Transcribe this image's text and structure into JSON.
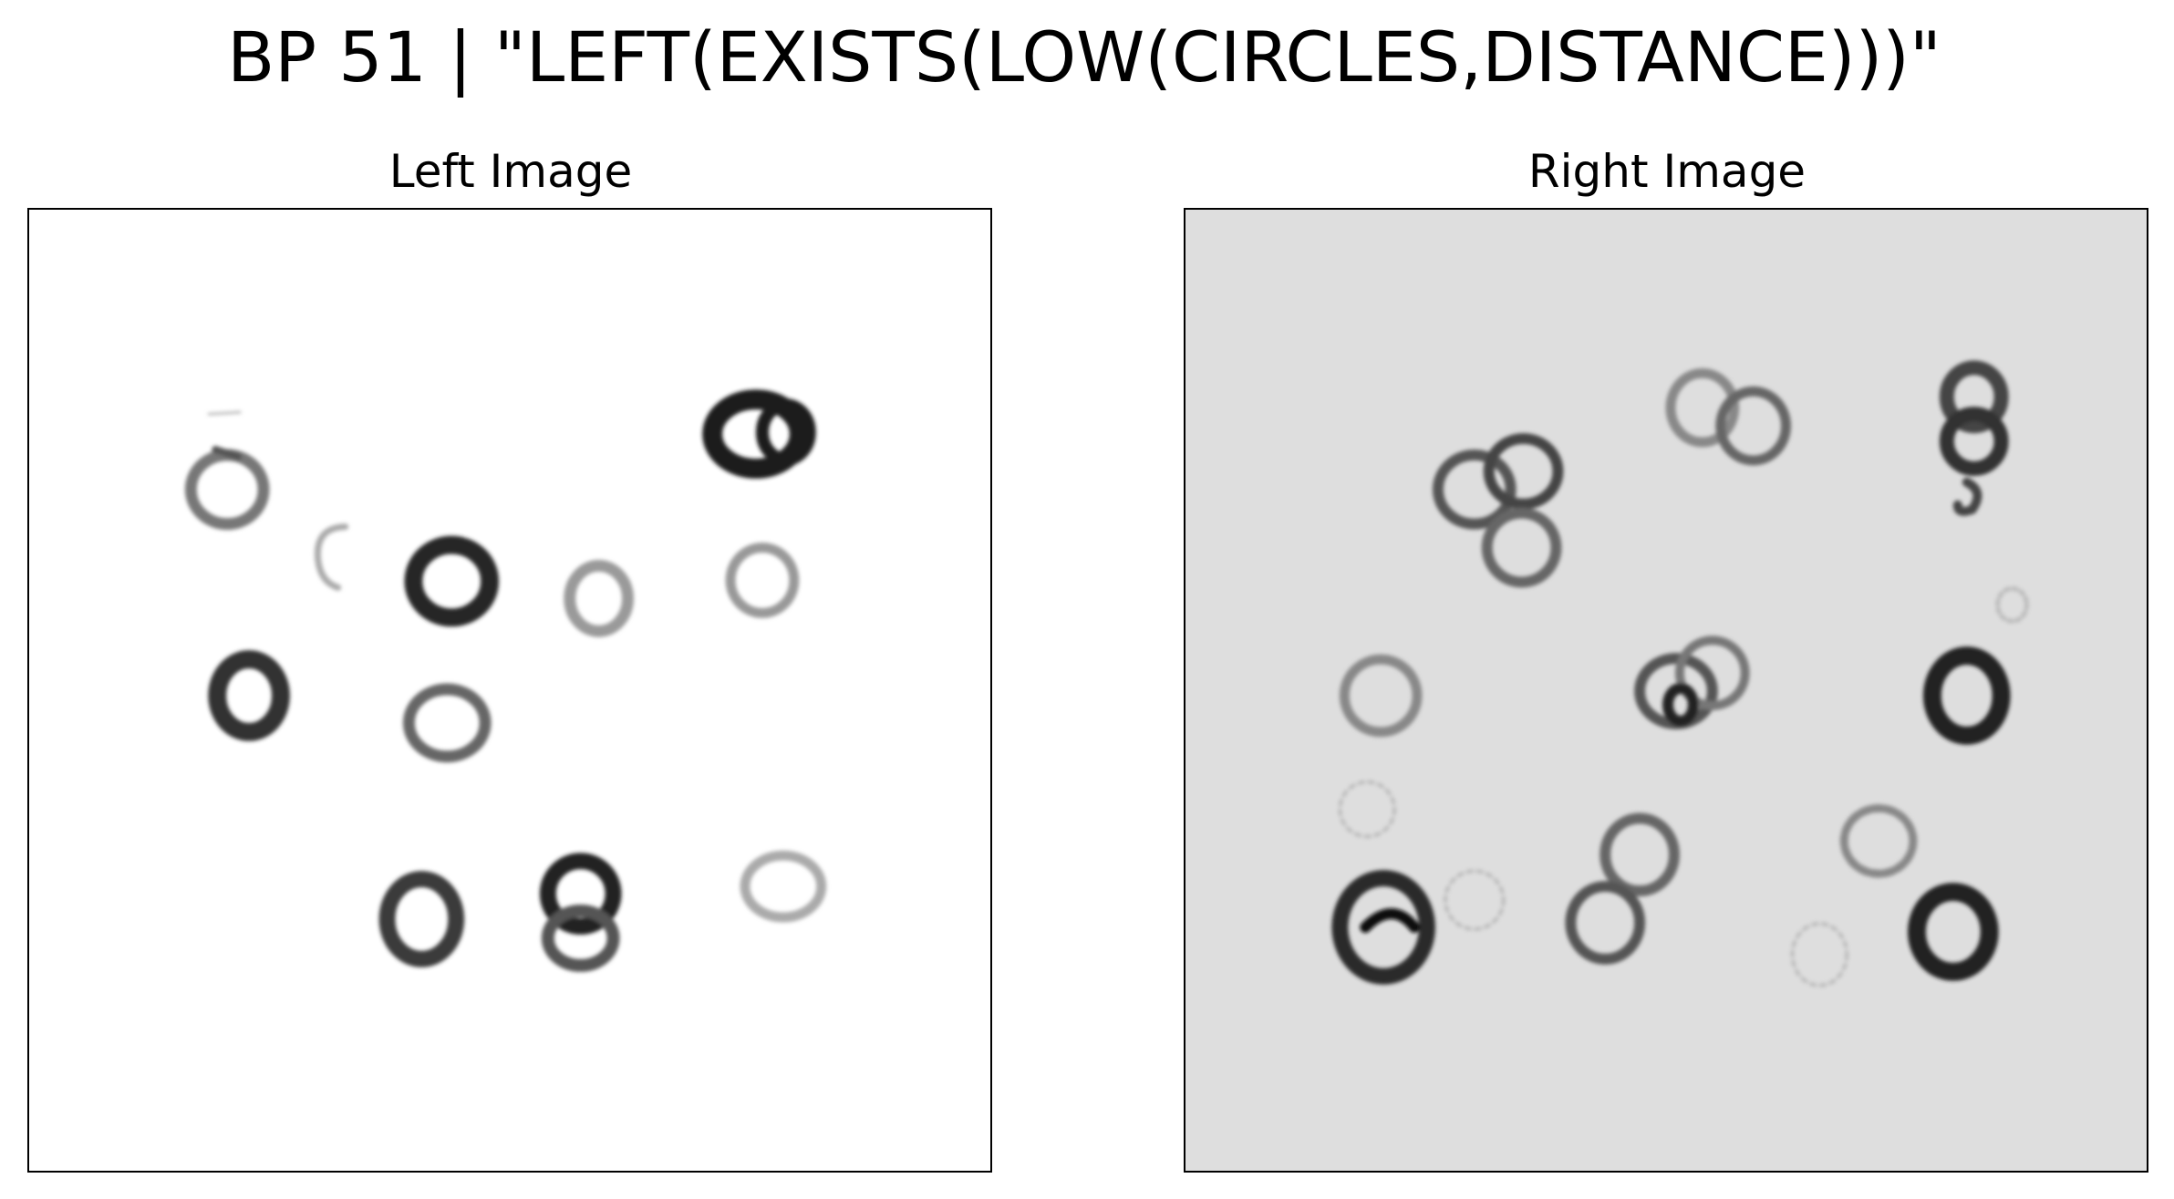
{
  "figure": {
    "title": "BP 51 | \"LEFT(EXISTS(LOW(CIRCLES,DISTANCE)))\""
  },
  "panels": {
    "left": {
      "title": "Left Image",
      "background": "#ffffff"
    },
    "right": {
      "title": "Right Image",
      "background": "#dedede"
    }
  },
  "colors": {
    "ink_dark": "#1e1e1e",
    "ink_mid": "#555555",
    "ink_light": "#8a8a8a",
    "frame": "#000000"
  }
}
